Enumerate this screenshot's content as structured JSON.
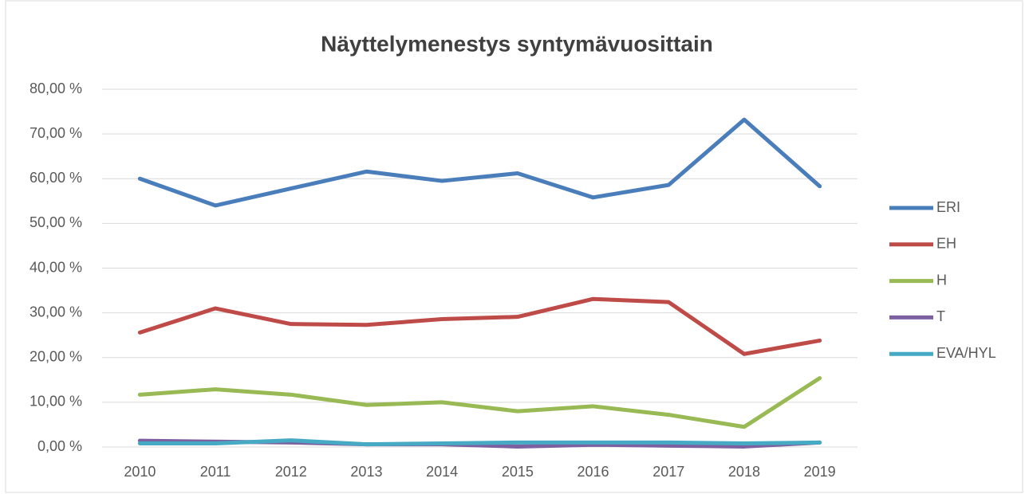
{
  "chart_data": {
    "type": "line",
    "title": "Näyttelymenestys syntymävuosittain",
    "categories": [
      "2010",
      "2011",
      "2012",
      "2013",
      "2014",
      "2015",
      "2016",
      "2017",
      "2018",
      "2019"
    ],
    "series": [
      {
        "name": "ERI",
        "color": "#4a7ebb",
        "values": [
          60.0,
          54.0,
          57.8,
          61.6,
          59.5,
          61.2,
          55.8,
          58.6,
          73.2,
          58.3
        ]
      },
      {
        "name": "EH",
        "color": "#be4b48",
        "values": [
          25.6,
          31.0,
          27.5,
          27.3,
          28.6,
          29.1,
          33.1,
          32.4,
          20.8,
          23.8
        ]
      },
      {
        "name": "H",
        "color": "#98b954",
        "values": [
          11.7,
          12.9,
          11.7,
          9.4,
          10.0,
          8.0,
          9.1,
          7.2,
          4.5,
          15.4
        ]
      },
      {
        "name": "T",
        "color": "#7d60a0",
        "values": [
          1.4,
          1.2,
          1.0,
          0.6,
          0.6,
          0.1,
          0.5,
          0.3,
          0.1,
          1.0
        ]
      },
      {
        "name": "EVA/HYL",
        "color": "#46aac5",
        "values": [
          0.8,
          0.8,
          1.5,
          0.6,
          0.8,
          1.0,
          1.0,
          1.0,
          0.8,
          1.0
        ]
      }
    ],
    "ylim": [
      0,
      80
    ],
    "yticks": [
      {
        "value": 0,
        "label": "0,00 %"
      },
      {
        "value": 10,
        "label": "10,00 %"
      },
      {
        "value": 20,
        "label": "20,00 %"
      },
      {
        "value": 30,
        "label": "30,00 %"
      },
      {
        "value": 40,
        "label": "40,00 %"
      },
      {
        "value": 50,
        "label": "50,00 %"
      },
      {
        "value": 60,
        "label": "60,00 %"
      },
      {
        "value": 70,
        "label": "70,00 %"
      },
      {
        "value": 80,
        "label": "80,00 %"
      }
    ],
    "grid": true,
    "legend": "right"
  }
}
